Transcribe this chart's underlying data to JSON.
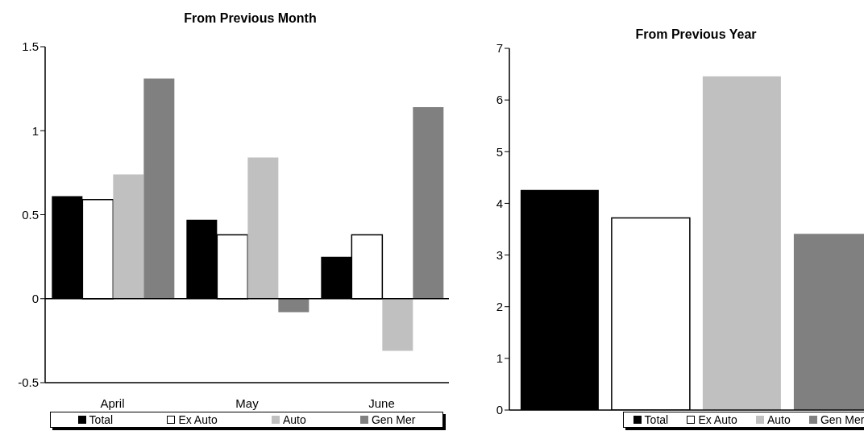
{
  "chart_data": [
    {
      "type": "bar",
      "title": "From Previous Month",
      "categories": [
        "April",
        "May",
        "June"
      ],
      "series": [
        {
          "name": "Total",
          "color": "#000000",
          "values": [
            0.61,
            0.47,
            0.25
          ]
        },
        {
          "name": "Ex Auto",
          "color": "#ffffff",
          "values": [
            0.59,
            0.38,
            0.38
          ]
        },
        {
          "name": "Auto",
          "color": "#c0c0c0",
          "values": [
            0.74,
            0.84,
            -0.31
          ]
        },
        {
          "name": "Gen Mer",
          "color": "#808080",
          "values": [
            1.31,
            -0.08,
            1.14
          ]
        }
      ],
      "ylim": [
        -0.5,
        1.5
      ],
      "yticks": [
        -0.5,
        0,
        0.5,
        1,
        1.5
      ],
      "ref_lines": [
        {
          "axis": "y",
          "value": 0,
          "color": "#000000"
        }
      ],
      "grid": false,
      "legend": "bottom"
    },
    {
      "type": "bar",
      "title": "From Previous Year",
      "categories": [
        null
      ],
      "series": [
        {
          "name": "Total",
          "color": "#000000",
          "values": [
            4.26
          ]
        },
        {
          "name": "Ex Auto",
          "color": "#ffffff",
          "values": [
            3.72
          ]
        },
        {
          "name": "Auto",
          "color": "#c0c0c0",
          "values": [
            6.46
          ]
        },
        {
          "name": "Gen Mer",
          "color": "#808080",
          "values": [
            3.41
          ]
        }
      ],
      "ylim": [
        0,
        7
      ],
      "yticks": [
        0,
        1,
        2,
        3,
        4,
        5,
        6,
        7
      ],
      "grid": false,
      "legend": "bottom"
    }
  ]
}
